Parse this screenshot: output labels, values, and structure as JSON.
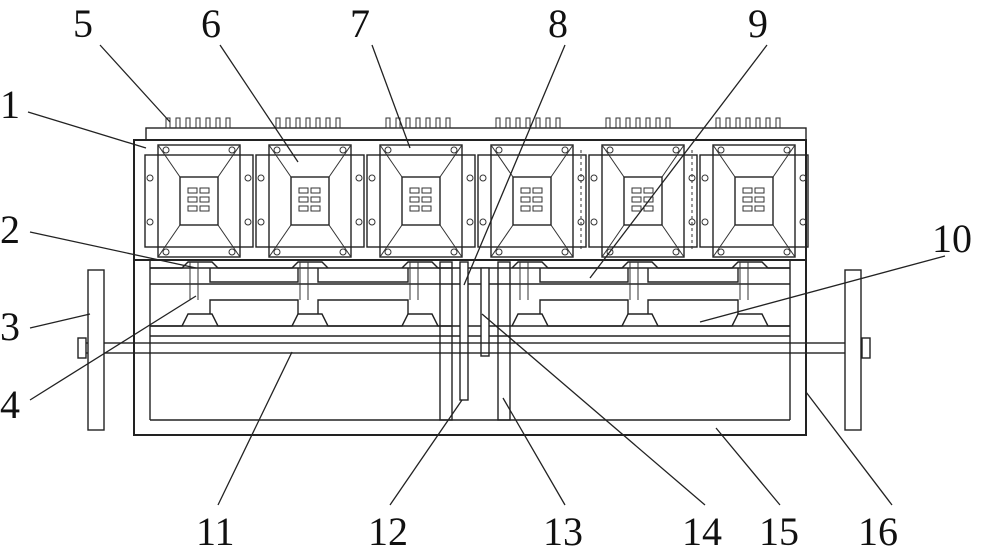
{
  "figure": {
    "title": "Mechanical drawing with numbered part callouts",
    "module_count": 6,
    "callout_labels": [
      "1",
      "2",
      "3",
      "4",
      "5",
      "6",
      "7",
      "8",
      "9",
      "10",
      "11",
      "12",
      "13",
      "14",
      "15",
      "16"
    ]
  },
  "colors": {
    "line": "#222222",
    "background": "#ffffff",
    "text": "#111111"
  }
}
